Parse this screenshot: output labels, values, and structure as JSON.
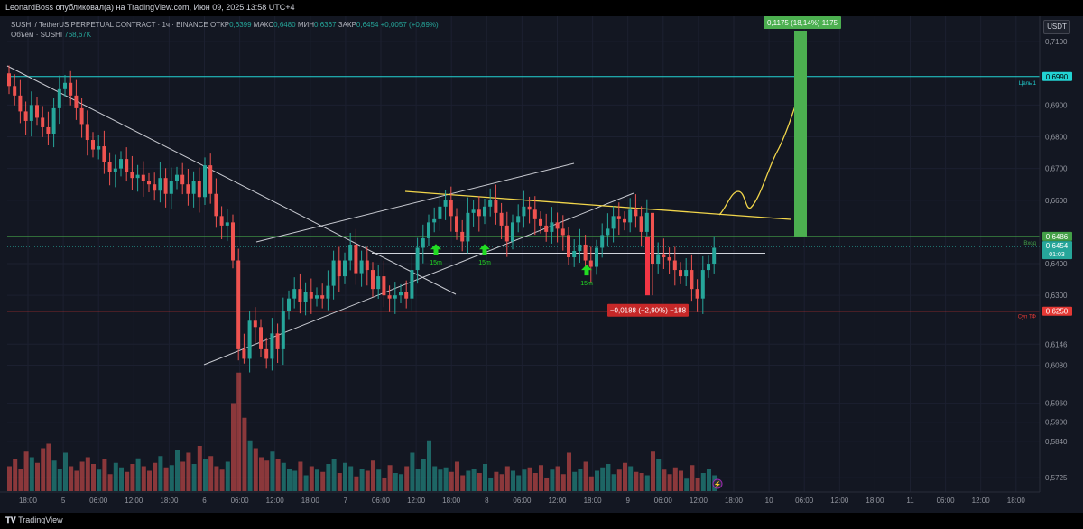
{
  "header": {
    "publisher": "LeonardBoss опубликовал(а) на TradingView.com, Июн 09, 2025 13:58 UTC+4"
  },
  "legend": {
    "symbol": "SUSHI / TetherUS PERPETUAL CONTRACT · 1ч · BINANCE",
    "open_label": "ОТКР",
    "open": "0,6399",
    "high_label": "МАКС",
    "high": "0,6480",
    "low_label": "МИН",
    "low": "0,6367",
    "close_label": "ЗАКР",
    "close": "0,6454",
    "change": "+0,0057 (+0,89%)",
    "volume_label": "Объём · SUSHI",
    "volume": "768,67K"
  },
  "currency_button": "USDT",
  "footer": {
    "logo": "TradingView"
  },
  "colors": {
    "bull": "#26a69a",
    "bear": "#ef5350",
    "background": "#131722",
    "target": "#4caf50",
    "stop": "#f23645",
    "trend_yellow": "#f2d64b"
  },
  "icons": [
    "tradingview-logo-icon",
    "arrow-up-icon",
    "lightning-icon"
  ],
  "chart_data": {
    "type": "candlestick",
    "ylim": [
      0.568,
      0.718
    ],
    "price_ticks": [
      "0,7100",
      "0,6990",
      "0,6900",
      "0,6800",
      "0,6700",
      "0,6600",
      "0,6486",
      "0,6454",
      "0,6400",
      "0,6300",
      "0,6250",
      "0,6146",
      "0,6080",
      "0,5960",
      "0,5900",
      "0,5840",
      "0,5725"
    ],
    "x_ticks": [
      "18:00",
      "5",
      "06:00",
      "12:00",
      "18:00",
      "6",
      "06:00",
      "12:00",
      "18:00",
      "7",
      "06:00",
      "12:00",
      "18:00",
      "8",
      "06:00",
      "12:00",
      "18:00",
      "9",
      "06:00",
      "12:00",
      "18:00",
      "10",
      "06:00",
      "12:00",
      "18:00",
      "11",
      "06:00",
      "12:00",
      "18:00"
    ],
    "candles_close": [
      0.696,
      0.693,
      0.688,
      0.685,
      0.69,
      0.686,
      0.683,
      0.681,
      0.689,
      0.695,
      0.697,
      0.693,
      0.689,
      0.684,
      0.679,
      0.676,
      0.677,
      0.672,
      0.669,
      0.67,
      0.673,
      0.669,
      0.667,
      0.668,
      0.666,
      0.665,
      0.663,
      0.667,
      0.662,
      0.666,
      0.668,
      0.665,
      0.662,
      0.666,
      0.661,
      0.671,
      0.662,
      0.655,
      0.652,
      0.653,
      0.641,
      0.613,
      0.61,
      0.622,
      0.62,
      0.613,
      0.61,
      0.618,
      0.613,
      0.625,
      0.629,
      0.632,
      0.628,
      0.631,
      0.629,
      0.63,
      0.629,
      0.633,
      0.641,
      0.636,
      0.641,
      0.646,
      0.637,
      0.641,
      0.638,
      0.632,
      0.636,
      0.63,
      0.629,
      0.63,
      0.631,
      0.629,
      0.638,
      0.645,
      0.648,
      0.653,
      0.654,
      0.658,
      0.66,
      0.655,
      0.65,
      0.647,
      0.656,
      0.657,
      0.655,
      0.658,
      0.66,
      0.656,
      0.652,
      0.647,
      0.653,
      0.655,
      0.658,
      0.657,
      0.654,
      0.652,
      0.65,
      0.653,
      0.651,
      0.649,
      0.642,
      0.644,
      0.646,
      0.641,
      0.639,
      0.645,
      0.649,
      0.651,
      0.655,
      0.654,
      0.653,
      0.657,
      0.655,
      0.65,
      0.656,
      0.64,
      0.643,
      0.642,
      0.641,
      0.638,
      0.636,
      0.638,
      0.632,
      0.629,
      0.638,
      0.64,
      0.645
    ],
    "volumes": [
      22,
      28,
      20,
      35,
      30,
      25,
      38,
      42,
      27,
      20,
      34,
      22,
      18,
      26,
      30,
      24,
      19,
      28,
      15,
      25,
      21,
      17,
      24,
      29,
      22,
      18,
      25,
      31,
      21,
      23,
      36,
      26,
      34,
      24,
      40,
      28,
      31,
      22,
      19,
      26,
      78,
      105,
      65,
      45,
      38,
      30,
      27,
      35,
      28,
      25,
      20,
      18,
      26,
      14,
      22,
      19,
      17,
      24,
      28,
      16,
      25,
      22,
      13,
      20,
      18,
      27,
      19,
      12,
      23,
      16,
      15,
      22,
      34,
      20,
      28,
      45,
      22,
      19,
      21,
      17,
      26,
      14,
      18,
      20,
      16,
      24,
      12,
      17,
      15,
      22,
      18,
      14,
      19,
      21,
      16,
      23,
      12,
      19,
      22,
      15,
      34,
      17,
      20,
      26,
      13,
      18,
      21,
      24,
      15,
      19,
      25,
      22,
      17,
      16,
      14,
      35,
      28,
      19,
      15,
      21,
      18,
      11,
      23,
      12,
      16,
      20,
      14
    ],
    "annotations": {
      "target_label": "Цель 1",
      "target_price": "0,6990",
      "entry_label": "Вход",
      "entry_price": "0,6486",
      "stop_label": "Суп ТФ",
      "stop_price": "0,6250",
      "current_price": "0,6454",
      "countdown": "01:03",
      "long_position": "0,1175 (18,14%) 1175",
      "short_move": "−0,0188 (−2,90%) −188",
      "signals": [
        "15m",
        "15m",
        "15m"
      ]
    }
  }
}
